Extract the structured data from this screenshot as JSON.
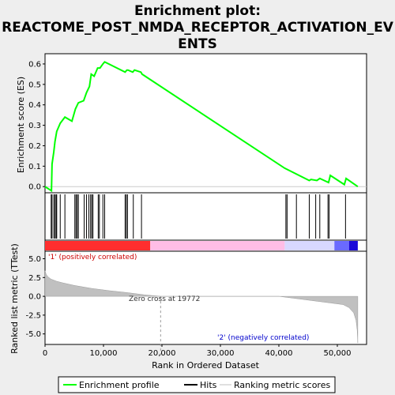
{
  "chart_data": {
    "type": "line",
    "title_line1": "Enrichment plot:",
    "title_line2": "REACTOME_POST_NMDA_RECEPTOR_ACTIVATION_EV",
    "title_line3": "ENTS",
    "es_panel": {
      "ylabel": "Enrichment score (ES)",
      "ylim": [
        -0.03,
        0.65
      ],
      "yticks": [
        "0.0",
        "0.1",
        "0.2",
        "0.3",
        "0.4",
        "0.5",
        "0.6"
      ],
      "ytick_values": [
        0.0,
        0.1,
        0.2,
        0.3,
        0.4,
        0.5,
        0.6
      ],
      "curve": {
        "name": "Enrichment profile",
        "color": "#00ff00",
        "x": [
          0,
          1100,
          1200,
          1500,
          1700,
          2000,
          2600,
          3400,
          4600,
          5200,
          5700,
          6600,
          7100,
          7600,
          7900,
          8400,
          9000,
          9400,
          9900,
          10200,
          13700,
          14000,
          14200,
          15000,
          15300,
          16400,
          16600,
          41000,
          45200,
          45500,
          46500,
          47000,
          48500,
          48800,
          51200,
          51500,
          53500
        ],
        "y": [
          0.0,
          -0.02,
          0.11,
          0.17,
          0.22,
          0.27,
          0.31,
          0.34,
          0.32,
          0.38,
          0.41,
          0.42,
          0.46,
          0.49,
          0.55,
          0.54,
          0.58,
          0.58,
          0.6,
          0.61,
          0.56,
          0.57,
          0.57,
          0.56,
          0.57,
          0.56,
          0.55,
          0.09,
          0.03,
          0.035,
          0.03,
          0.04,
          0.02,
          0.055,
          0.01,
          0.04,
          0.0
        ]
      }
    },
    "hits": {
      "name": "Hits",
      "color": "#000000",
      "positions": [
        1050,
        1200,
        1500,
        1700,
        1900,
        2000,
        2600,
        3400,
        5100,
        5300,
        5500,
        5700,
        6700,
        7100,
        7500,
        7800,
        8000,
        8200,
        9100,
        9300,
        9900,
        10200,
        13700,
        13900,
        14100,
        15100,
        16500,
        41200,
        41400,
        43000,
        45200,
        46300,
        47000,
        48400,
        48600,
        51400
      ]
    },
    "rank_panel": {
      "ylabel": "Ranked list metric (TTest)",
      "ylim": [
        -6.4,
        6.0
      ],
      "yticks": [
        "5.0",
        "2.5",
        "0.0",
        "-2.5",
        "-5.0"
      ],
      "ytick_values": [
        5.0,
        2.5,
        0.0,
        -2.5,
        -5.0
      ],
      "metric_color": "#c0c0c0",
      "metric_x": [
        0,
        200,
        500,
        1000,
        2000,
        3000,
        5000,
        8000,
        11000,
        14000,
        17000,
        19772,
        22000,
        30000,
        40000,
        41000,
        44000,
        47000,
        49000,
        51000,
        52000,
        52800,
        53200,
        53400,
        53500
      ],
      "metric_y": [
        3.4,
        2.9,
        2.6,
        2.3,
        2.0,
        1.8,
        1.45,
        1.05,
        0.75,
        0.5,
        0.2,
        0.0,
        0.0,
        0.0,
        0.0,
        -0.1,
        -0.4,
        -0.7,
        -0.9,
        -1.1,
        -1.5,
        -2.2,
        -3.2,
        -4.5,
        -6.2
      ],
      "zero_cross_label": "Zero cross at 19772",
      "zero_cross_x": 19772,
      "pos_label": "'1' (positively correlated)",
      "neg_label": "'2' (negatively correlated)",
      "pos_color": "#cc0000",
      "neg_color": "#0000cc"
    },
    "xaxis": {
      "label": "Rank in Ordered Dataset",
      "xlim": [
        0,
        55000
      ],
      "ticks": [
        "0",
        "10,000",
        "20,000",
        "30,000",
        "40,000",
        "50,000"
      ],
      "tick_values": [
        0,
        10000,
        20000,
        30000,
        40000,
        50000
      ]
    },
    "heatbar": {
      "segments": [
        {
          "from": 0,
          "to": 18000,
          "color": "#ff2e2e"
        },
        {
          "from": 18000,
          "to": 41000,
          "color": "#ffbde6"
        },
        {
          "from": 41000,
          "to": 49500,
          "color": "#d8d8ff"
        },
        {
          "from": 49500,
          "to": 52000,
          "color": "#6a6aff"
        },
        {
          "from": 52000,
          "to": 53500,
          "color": "#1a0ad8"
        }
      ]
    },
    "legend": [
      {
        "label": "Enrichment profile",
        "color": "#00ff00",
        "kind": "line"
      },
      {
        "label": "Hits",
        "color": "#000000",
        "kind": "line"
      },
      {
        "label": "Ranking metric scores",
        "color": "#c0c0c0",
        "kind": "line"
      }
    ]
  }
}
